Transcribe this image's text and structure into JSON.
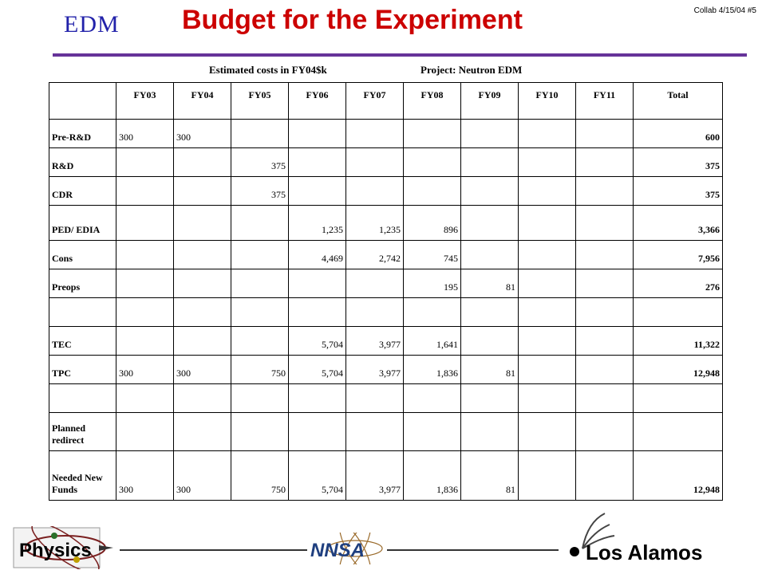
{
  "header": {
    "edm_label": "EDM",
    "title": "Budget for the Experiment",
    "slide_id": "Collab 4/15/04  #5",
    "subtitle_left": "Estimated costs in FY04$k",
    "subtitle_right": "Project: Neutron EDM"
  },
  "table": {
    "columns": [
      "",
      "FY03",
      "FY04",
      "FY05",
      "FY06",
      "FY07",
      "FY08",
      "FY09",
      "FY10",
      "FY11",
      "Total"
    ],
    "rows": [
      [
        "Pre-R&D",
        "300",
        "300",
        "",
        "",
        "",
        "",
        "",
        "",
        "",
        "600"
      ],
      [
        "R&D",
        "",
        "",
        "375",
        "",
        "",
        "",
        "",
        "",
        "",
        "375"
      ],
      [
        "CDR",
        "",
        "",
        "375",
        "",
        "",
        "",
        "",
        "",
        "",
        "375"
      ],
      [
        "PED/ EDIA",
        "",
        "",
        "",
        "1,235",
        "1,235",
        "896",
        "",
        "",
        "",
        "3,366"
      ],
      [
        "Cons",
        "",
        "",
        "",
        "4,469",
        "2,742",
        "745",
        "",
        "",
        "",
        "7,956"
      ],
      [
        "Preops",
        "",
        "",
        "",
        "",
        "",
        "195",
        "81",
        "",
        "",
        "276"
      ],
      [
        "",
        "",
        "",
        "",
        "",
        "",
        "",
        "",
        "",
        "",
        ""
      ],
      [
        "TEC",
        "",
        "",
        "",
        "5,704",
        "3,977",
        "1,641",
        "",
        "",
        "",
        "11,322"
      ],
      [
        "TPC",
        "300",
        "300",
        "750",
        "5,704",
        "3,977",
        "1,836",
        "81",
        "",
        "",
        "12,948"
      ],
      [
        "",
        "",
        "",
        "",
        "",
        "",
        "",
        "",
        "",
        "",
        ""
      ],
      [
        "Planned redirect",
        "",
        "",
        "",
        "",
        "",
        "",
        "",
        "",
        "",
        ""
      ],
      [
        "Needed New Funds",
        "300",
        "300",
        "750",
        "5,704",
        "3,977",
        "1,836",
        "81",
        "",
        "",
        "12,948"
      ]
    ]
  },
  "footer": {
    "left_logo_text": "Physics",
    "center_logo_text": "NNSA",
    "right_logo_text": "Los Alamos",
    "line_color": "#333333",
    "accent_color": "#663399"
  }
}
